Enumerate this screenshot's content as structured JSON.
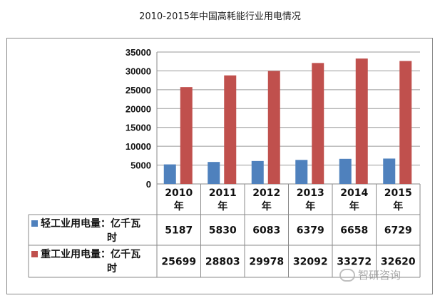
{
  "title": "2010-2015年中国高耗能行业用电情况",
  "chart_data": {
    "type": "bar",
    "title": "2010-2015年中国高耗能行业用电情况",
    "categories": [
      [
        "2010",
        "年"
      ],
      [
        "2011",
        "年"
      ],
      [
        "2012",
        "年"
      ],
      [
        "2013",
        "年"
      ],
      [
        "2014",
        "年"
      ],
      [
        "2015",
        "年"
      ]
    ],
    "series": [
      {
        "name": [
          "轻工业用电量：亿千瓦",
          "时"
        ],
        "color": "#4f81bd",
        "values": [
          5187,
          5830,
          6083,
          6379,
          6658,
          6729
        ]
      },
      {
        "name": [
          "重工业用电量：亿千瓦",
          "时"
        ],
        "color": "#c0504d",
        "values": [
          25699,
          28803,
          29978,
          32092,
          33272,
          32620
        ]
      }
    ],
    "yticks": [
      0,
      5000,
      10000,
      15000,
      20000,
      25000,
      30000,
      35000
    ],
    "ylim": [
      0,
      35000
    ],
    "grid": true,
    "data_table": true
  },
  "watermark": {
    "text": "智研咨询",
    "icon": "wechat-icon"
  }
}
